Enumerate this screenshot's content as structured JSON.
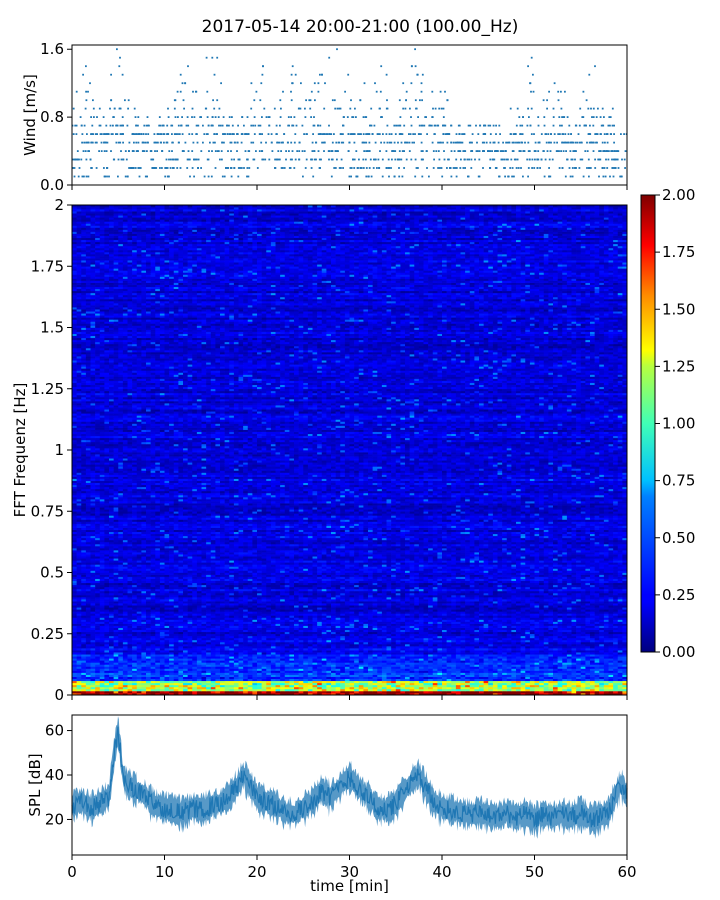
{
  "figure": {
    "title": "2017-05-14 20:00-21:00 (100.00_Hz)"
  },
  "chart_data": [
    {
      "panel": "wind",
      "type": "scatter",
      "xlabel": "",
      "ylabel": "Wind [m/s]",
      "xlim": [
        0,
        60
      ],
      "ylim": [
        0,
        1.65
      ],
      "yticks": [
        0.0,
        0.8,
        1.6
      ],
      "ytick_labels": [
        "0.0",
        "0.8",
        "1.6"
      ],
      "xticks": [
        0,
        10,
        20,
        30,
        40,
        50,
        60
      ],
      "show_xtick_labels": false,
      "color": "#1f77b4",
      "levels": [
        0.0,
        0.1,
        0.2,
        0.3,
        0.4,
        0.5,
        0.6,
        0.7,
        0.8,
        0.9,
        1.0,
        1.1,
        1.2,
        1.3,
        1.4,
        1.5,
        1.6
      ],
      "note": "wind speed quantized in 0.1 m/s steps; typical 0.1-0.6, occasional peaks to 1.6 near 15, 27, 37, 50 min"
    },
    {
      "panel": "spectrogram",
      "type": "heatmap",
      "xlabel": "",
      "ylabel": "FFT Frequenz [Hz]",
      "xlim": [
        0,
        60
      ],
      "ylim": [
        0,
        2
      ],
      "yticks": [
        0,
        0.25,
        0.5,
        0.75,
        1,
        1.25,
        1.5,
        1.75,
        2
      ],
      "ytick_labels": [
        "0",
        "0.25",
        "0.5",
        "0.75",
        "1",
        "1.25",
        "1.5",
        "1.75",
        "2"
      ],
      "colormap": "jet",
      "clim": [
        0,
        2
      ],
      "colorbar_ticks": [
        "0.00",
        "0.25",
        "0.50",
        "0.75",
        "1.00",
        "1.25",
        "1.50",
        "1.75",
        "2.00"
      ],
      "colorbar_values": [
        0,
        0.25,
        0.5,
        0.75,
        1.0,
        1.25,
        1.5,
        1.75,
        2.0
      ],
      "note": "mostly 0.1-0.4 across 0-2 Hz; values up to 2.0 below 0.05 Hz, around 0.5-1.0 below 0.25 Hz"
    },
    {
      "panel": "spl",
      "type": "line",
      "xlabel": "time [min]",
      "ylabel": "SPL [dB]",
      "xlim": [
        0,
        60
      ],
      "ylim": [
        4,
        67
      ],
      "yticks": [
        20,
        40,
        60
      ],
      "ytick_labels": [
        "20",
        "40",
        "60"
      ],
      "xticks": [
        0,
        10,
        20,
        30,
        40,
        50,
        60
      ],
      "xtick_labels": [
        "0",
        "10",
        "20",
        "30",
        "40",
        "50",
        "60"
      ],
      "color": "#1f77b4",
      "x": [
        0,
        1,
        2,
        3,
        4,
        4.5,
        5.0,
        5.5,
        6,
        7,
        8,
        9,
        10,
        11,
        12,
        13,
        14,
        15,
        16,
        17,
        18,
        18.5,
        19,
        20,
        21,
        22,
        23,
        24,
        25,
        26,
        27,
        28,
        29,
        30,
        31,
        32,
        33,
        34,
        35,
        36,
        37,
        37.5,
        38,
        39,
        40,
        41,
        42,
        43,
        44,
        45,
        46,
        47,
        48,
        49,
        50,
        51,
        52,
        53,
        54,
        55,
        56,
        57,
        58,
        58.7,
        59.3,
        60
      ],
      "y": [
        26,
        28,
        25,
        27,
        30,
        48,
        60,
        40,
        36,
        33,
        30,
        26,
        25,
        24,
        23,
        25,
        24,
        26,
        27,
        30,
        36,
        40,
        37,
        30,
        28,
        26,
        23,
        22,
        25,
        28,
        33,
        30,
        35,
        39,
        34,
        30,
        25,
        24,
        27,
        33,
        38,
        40,
        36,
        28,
        25,
        24,
        23,
        22,
        23,
        22,
        21,
        23,
        21,
        22,
        20,
        22,
        21,
        22,
        21,
        23,
        20,
        21,
        23,
        30,
        36,
        30
      ],
      "band": 6
    }
  ]
}
